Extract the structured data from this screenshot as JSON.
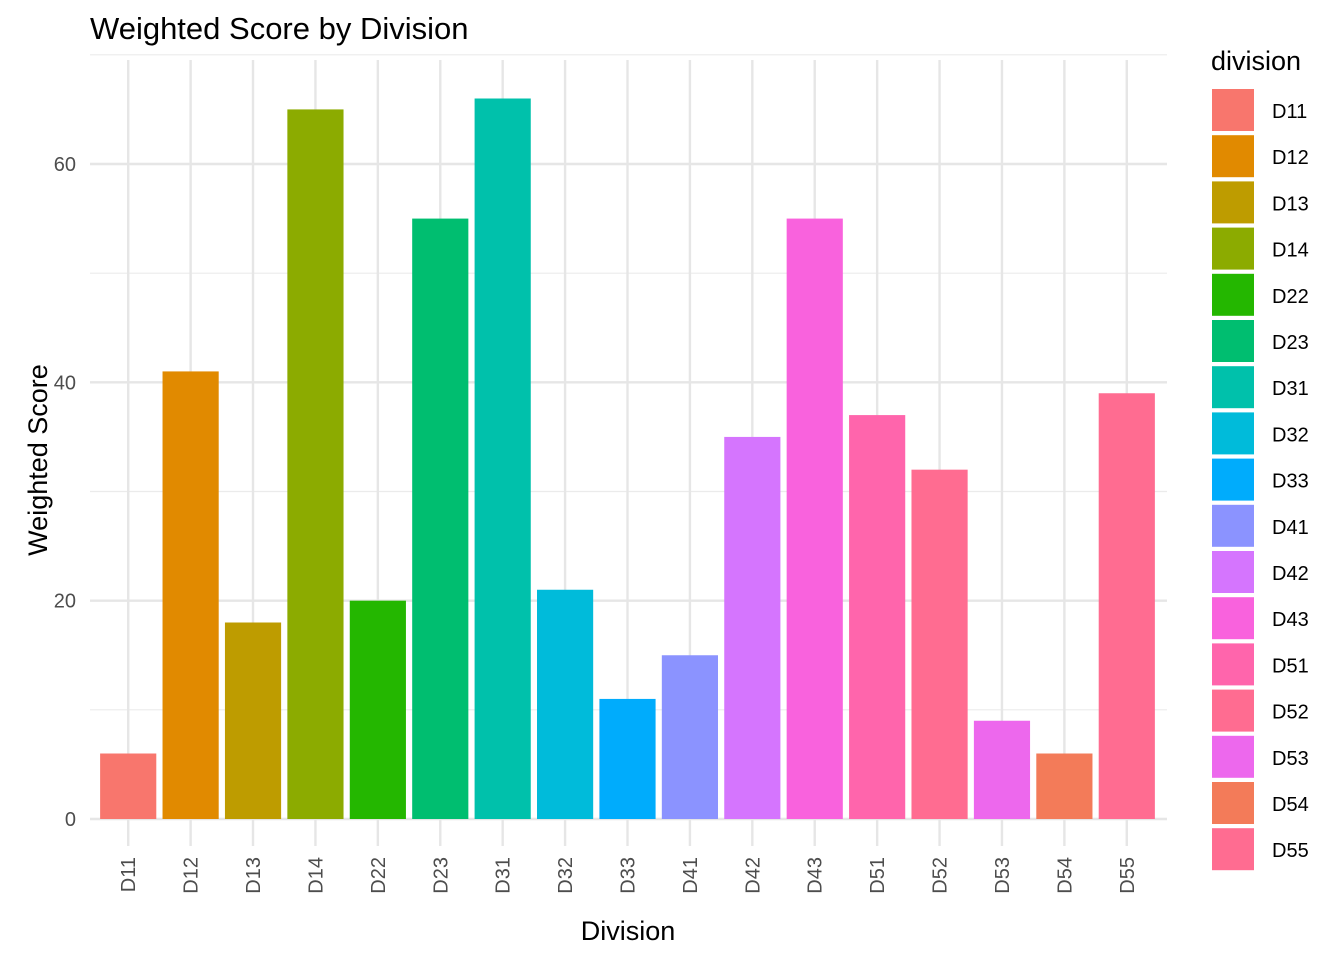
{
  "chart_data": {
    "type": "bar",
    "title": "Weighted Score by Division",
    "xlabel": "Division",
    "ylabel": "Weighted Score",
    "categories": [
      "D11",
      "D12",
      "D13",
      "D14",
      "D22",
      "D23",
      "D31",
      "D32",
      "D33",
      "D41",
      "D42",
      "D43",
      "D51",
      "D52",
      "D53",
      "D54",
      "D55"
    ],
    "values": [
      6,
      41,
      18,
      65,
      20,
      55,
      66,
      21,
      11,
      15,
      35,
      55,
      37,
      32,
      9,
      6,
      39
    ],
    "colors": [
      "#F8766D",
      "#E18A00",
      "#BE9C00",
      "#8CAB00",
      "#24B700",
      "#00BE70",
      "#00C1AB",
      "#00BBDA",
      "#00ACFC",
      "#8B93FF",
      "#D575FE",
      "#F962DD",
      "#FF65AC",
      "#FF6C91",
      "#ED68ED",
      "#F37B59",
      "#FF6C91"
    ],
    "ylim": [
      0,
      70
    ],
    "yticks": [
      0,
      20,
      40,
      60
    ],
    "grid": true,
    "legend": {
      "title": "division",
      "placement": "right",
      "entries": [
        "D11",
        "D12",
        "D13",
        "D14",
        "D22",
        "D23",
        "D31",
        "D32",
        "D33",
        "D41",
        "D42",
        "D43",
        "D51",
        "D52",
        "D53",
        "D54",
        "D55"
      ]
    }
  }
}
